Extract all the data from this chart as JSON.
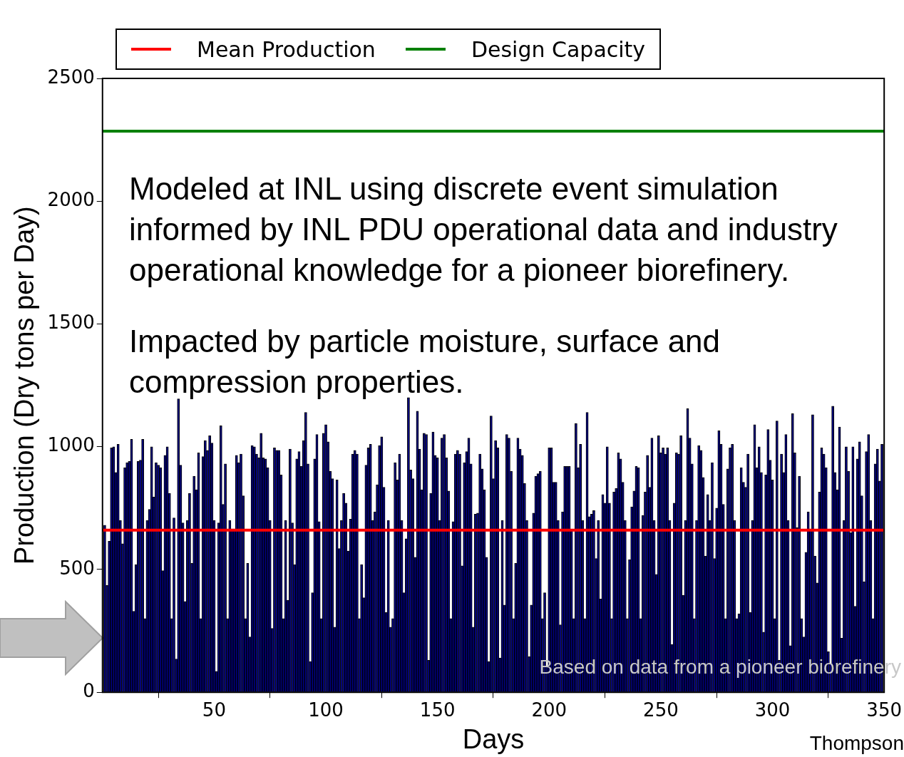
{
  "chart_data": {
    "type": "bar",
    "xlabel": "Days",
    "ylabel": "Production (Dry tons per Day)",
    "x": [
      1,
      2,
      3,
      4,
      5,
      6,
      7,
      8,
      9,
      10,
      11,
      12,
      13,
      14,
      15,
      16,
      17,
      18,
      19,
      20,
      21,
      22,
      23,
      24,
      25,
      26,
      27,
      28,
      29,
      30,
      31,
      32,
      33,
      34,
      35,
      36,
      37,
      38,
      39,
      40,
      41,
      42,
      43,
      44,
      45,
      46,
      47,
      48,
      49,
      50,
      51,
      52,
      53,
      54,
      55,
      56,
      57,
      58,
      59,
      60,
      61,
      62,
      63,
      64,
      65,
      66,
      67,
      68,
      69,
      70,
      71,
      72,
      73,
      74,
      75,
      76,
      77,
      78,
      79,
      80,
      81,
      82,
      83,
      84,
      85,
      86,
      87,
      88,
      89,
      90,
      91,
      92,
      93,
      94,
      95,
      96,
      97,
      98,
      99,
      100,
      101,
      102,
      103,
      104,
      105,
      106,
      107,
      108,
      109,
      110,
      111,
      112,
      113,
      114,
      115,
      116,
      117,
      118,
      119,
      120,
      121,
      122,
      123,
      124,
      125,
      126,
      127,
      128,
      129,
      130,
      131,
      132,
      133,
      134,
      135,
      136,
      137,
      138,
      139,
      140,
      141,
      142,
      143,
      144,
      145,
      146,
      147,
      148,
      149,
      150,
      151,
      152,
      153,
      154,
      155,
      156,
      157,
      158,
      159,
      160,
      161,
      162,
      163,
      164,
      165,
      166,
      167,
      168,
      169,
      170,
      171,
      172,
      173,
      174,
      175,
      176,
      177,
      178,
      179,
      180,
      181,
      182,
      183,
      184,
      185,
      186,
      187,
      188,
      189,
      190,
      191,
      192,
      193,
      194,
      195,
      196,
      197,
      198,
      199,
      200,
      201,
      202,
      203,
      204,
      205,
      206,
      207,
      208,
      209,
      210,
      211,
      212,
      213,
      214,
      215,
      216,
      217,
      218,
      219,
      220,
      221,
      222,
      223,
      224,
      225,
      226,
      227,
      228,
      229,
      230,
      231,
      232,
      233,
      234,
      235,
      236,
      237,
      238,
      239,
      240,
      241,
      242,
      243,
      244,
      245,
      246,
      247,
      248,
      249,
      250,
      251,
      252,
      253,
      254,
      255,
      256,
      257,
      258,
      259,
      260,
      261,
      262,
      263,
      264,
      265,
      266,
      267,
      268,
      269,
      270,
      271,
      272,
      273,
      274,
      275,
      276,
      277,
      278,
      279,
      280,
      281,
      282,
      283,
      284,
      285,
      286,
      287,
      288,
      289,
      290,
      291,
      292,
      293,
      294,
      295,
      296,
      297,
      298,
      299,
      300,
      301,
      302,
      303,
      304,
      305,
      306,
      307,
      308,
      309,
      310,
      311,
      312,
      313,
      314,
      315,
      316,
      317,
      318,
      319,
      320,
      321,
      322,
      323,
      324,
      325,
      326,
      327,
      328,
      329,
      330,
      331,
      332,
      333,
      334,
      335,
      336,
      337,
      338,
      339,
      340,
      341,
      342,
      343,
      344,
      345,
      346,
      347,
      348,
      349
    ],
    "values": [
      680,
      435,
      615,
      995,
      1000,
      895,
      1010,
      700,
      605,
      915,
      935,
      940,
      1030,
      330,
      520,
      940,
      945,
      1030,
      300,
      700,
      745,
      1000,
      795,
      935,
      925,
      915,
      495,
      965,
      1000,
      810,
      300,
      710,
      135,
      1195,
      925,
      690,
      370,
      700,
      810,
      525,
      880,
      825,
      975,
      300,
      960,
      1025,
      985,
      1045,
      1015,
      700,
      85,
      690,
      1085,
      765,
      930,
      300,
      700,
      665,
      665,
      965,
      935,
      970,
      800,
      300,
      525,
      225,
      1005,
      1000,
      970,
      955,
      1055,
      955,
      950,
      915,
      700,
      260,
      995,
      985,
      985,
      885,
      300,
      700,
      375,
      990,
      690,
      520,
      950,
      980,
      920,
      1025,
      1140,
      930,
      125,
      405,
      950,
      1050,
      695,
      300,
      1055,
      1090,
      1020,
      900,
      870,
      265,
      865,
      585,
      700,
      810,
      770,
      575,
      705,
      970,
      985,
      970,
      300,
      520,
      385,
      925,
      995,
      1010,
      700,
      735,
      845,
      1005,
      1040,
      835,
      325,
      700,
      265,
      300,
      935,
      865,
      970,
      700,
      405,
      625,
      1200,
      905,
      870,
      550,
      1145,
      990,
      825,
      1055,
      1050,
      130,
      810,
      1060,
      965,
      955,
      700,
      1035,
      1050,
      955,
      820,
      300,
      695,
      970,
      985,
      970,
      515,
      935,
      980,
      1035,
      930,
      265,
      725,
      730,
      970,
      910,
      825,
      550,
      125,
      1125,
      870,
      1025,
      995,
      140,
      700,
      355,
      1050,
      1035,
      900,
      300,
      525,
      1035,
      990,
      965,
      850,
      700,
      145,
      355,
      730,
      880,
      890,
      900,
      300,
      405,
      105,
      995,
      995,
      855,
      855,
      700,
      275,
      735,
      920,
      920,
      920,
      660,
      300,
      1095,
      915,
      1010,
      700,
      300,
      1140,
      715,
      725,
      740,
      545,
      700,
      380,
      805,
      770,
      1000,
      770,
      300,
      815,
      830,
      975,
      950,
      855,
      700,
      300,
      540,
      755,
      820,
      920,
      915,
      300,
      720,
      815,
      965,
      835,
      1035,
      700,
      480,
      1045,
      975,
      995,
      970,
      995,
      700,
      195,
      770,
      975,
      970,
      1045,
      395,
      700,
      1155,
      1035,
      930,
      300,
      700,
      1005,
      985,
      875,
      555,
      805,
      700,
      935,
      545,
      750,
      1065,
      1010,
      765,
      300,
      910,
      995,
      1010,
      700,
      300,
      320,
      915,
      855,
      835,
      970,
      325,
      700,
      1090,
      915,
      1000,
      895,
      245,
      885,
      1070,
      945,
      865,
      300,
      1105,
      130,
      970,
      895,
      1050,
      700,
      190,
      1135,
      975,
      670,
      880,
      300,
      225,
      570,
      735,
      665,
      1130,
      555,
      445,
      815,
      995,
      970,
      915,
      165,
      115,
      1165,
      895,
      825,
      1080,
      220,
      700,
      1000,
      900,
      650,
      1000,
      350,
      950,
      1020,
      800,
      450,
      980,
      1050,
      700,
      300,
      930,
      990,
      860,
      1010
    ],
    "color": "#000080",
    "xlim": [
      0,
      350
    ],
    "xticks": [
      50,
      100,
      150,
      200,
      250,
      300,
      350
    ],
    "ylim": [
      0,
      2500
    ],
    "yticks": [
      0,
      500,
      {
        "value": 1000,
        "label": "1000"
      },
      {
        "value": 1500,
        "label": "1500"
      },
      {
        "value": 2000,
        "label": "2000"
      },
      {
        "value": 2500,
        "label": "2500"
      }
    ],
    "ref_lines": [
      {
        "axis": "y",
        "value": 660,
        "label": "Mean Production",
        "color": "#ff0000"
      },
      {
        "axis": "y",
        "value": 2285,
        "label": "Design Capacity",
        "color": "#008000"
      }
    ],
    "legend": "top",
    "grid": false,
    "annotations": [
      "Modeled at INL using discrete event simulation informed by INL PDU operational data and industry operational knowledge for a pioneer biorefinery.",
      "Impacted by particle moisture, surface and compression properties.",
      "Based on data from a pioneer biorefinery",
      "Thompson"
    ]
  }
}
